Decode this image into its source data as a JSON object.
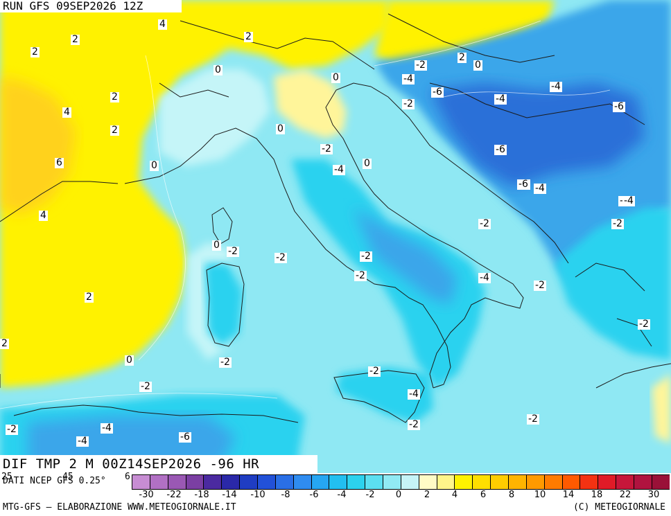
{
  "header": {
    "run_label": "RUN GFS 09SEP2026 12Z"
  },
  "footer": {
    "field_label": "DIF TMP 2 M 00Z14SEP2026 -96 HR"
  },
  "source": {
    "text": "DATI NCEP GFS 0.25°",
    "left_tick_a": "25",
    "left_tick_b": "45",
    "left_tick_c": "6"
  },
  "credits": {
    "left": "MTG-GFS — ELABORAZIONE WWW.METEOGIORNALE.IT",
    "right": "(C) METEOGIORNALE"
  },
  "colors": {
    "sea_base": "#8fe8f3",
    "warm_yellow": "#fff200",
    "hot_orange": "#ffd21a",
    "pale_yellow": "#fff59a",
    "pale_cyan": "#c5f5f8",
    "cyan": "#2bd2ef",
    "blue_mid": "#3aa6ea",
    "blue_deep": "#2a6fd8",
    "coast": "#1a1a1a"
  },
  "scale": {
    "swatches": [
      "#c78dd3",
      "#b170c4",
      "#9a58b4",
      "#7b3fa3",
      "#4b2aa0",
      "#2a28a8",
      "#1f3dc2",
      "#2251d8",
      "#2a6fe6",
      "#2f8cf0",
      "#26a6f2",
      "#22bff0",
      "#2cd2ee",
      "#5cdff1",
      "#91eaf4",
      "#c6f4f7",
      "#fffbc6",
      "#fff58a",
      "#fff200",
      "#ffdf00",
      "#ffcd00",
      "#ffb400",
      "#ff9a00",
      "#ff7b00",
      "#ff5a00",
      "#f43212",
      "#e01b27",
      "#c7163a",
      "#b0133f",
      "#9a1138"
    ],
    "ticks": [
      "-30",
      "-22",
      "-18",
      "-14",
      "-10",
      "-8",
      "-6",
      "-4",
      "-2",
      "0",
      "2",
      "4",
      "6",
      "8",
      "10",
      "14",
      "18",
      "22",
      "30"
    ]
  },
  "labels": [
    {
      "t": "4"
    },
    {
      "t": "2"
    },
    {
      "t": "2"
    },
    {
      "t": "2"
    },
    {
      "t": "2"
    },
    {
      "t": "4"
    },
    {
      "t": "2"
    },
    {
      "t": "6"
    },
    {
      "t": "0"
    },
    {
      "t": "4"
    },
    {
      "t": "0"
    },
    {
      "t": "0"
    },
    {
      "t": "0"
    },
    {
      "t": "2"
    },
    {
      "t": "0"
    },
    {
      "t": "-4"
    },
    {
      "t": "-2"
    },
    {
      "t": "-4"
    },
    {
      "t": "-6"
    },
    {
      "t": "-2"
    },
    {
      "t": "-4"
    },
    {
      "t": "-6"
    },
    {
      "t": "-6"
    },
    {
      "t": "-2"
    },
    {
      "t": "-4"
    },
    {
      "t": "0"
    },
    {
      "t": "-6"
    },
    {
      "t": "-6"
    },
    {
      "t": "-4"
    },
    {
      "t": "-4"
    },
    {
      "t": "-2"
    },
    {
      "t": "-2"
    },
    {
      "t": "0"
    },
    {
      "t": "-2"
    },
    {
      "t": "-2"
    },
    {
      "t": "-2"
    },
    {
      "t": "-2"
    },
    {
      "t": "-4"
    },
    {
      "t": "-2"
    },
    {
      "t": "-2"
    },
    {
      "t": "2"
    },
    {
      "t": "2"
    },
    {
      "t": "0"
    },
    {
      "t": "-2"
    },
    {
      "t": "-2"
    },
    {
      "t": "-2"
    },
    {
      "t": "-4"
    },
    {
      "t": "-2"
    },
    {
      "t": "-2"
    },
    {
      "t": "-2"
    },
    {
      "t": "-4"
    },
    {
      "t": "-4"
    },
    {
      "t": "-6"
    },
    {
      "t": "-2"
    }
  ]
}
